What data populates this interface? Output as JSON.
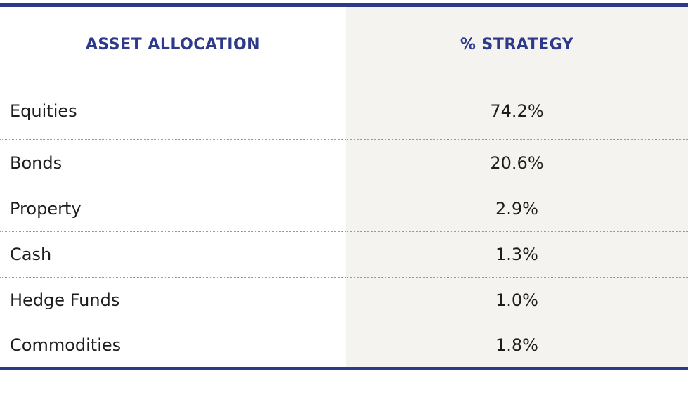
{
  "table": {
    "headers": {
      "category": "ASSET ALLOCATION",
      "value": "% STRATEGY"
    },
    "rows": [
      {
        "name": "Equities",
        "value": "74.2%"
      },
      {
        "name": "Bonds",
        "value": "20.6%"
      },
      {
        "name": "Property",
        "value": "2.9%"
      },
      {
        "name": "Cash",
        "value": "1.3%"
      },
      {
        "name": "Hedge Funds",
        "value": "1.0%"
      },
      {
        "name": "Commodities",
        "value": "1.8%"
      }
    ]
  },
  "colors": {
    "accent": "#2d3a8c",
    "value_column_bg": "#f4f3ef",
    "text": "#1d1d1d"
  }
}
